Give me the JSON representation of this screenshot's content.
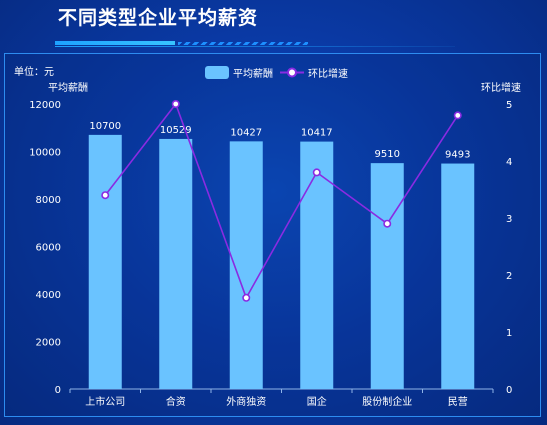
{
  "header": {
    "title": "不同类型企业平均薪资"
  },
  "chart_data": {
    "type": "bar",
    "unit_label": "单位：元",
    "ylabel_left": "平均薪酬",
    "ylabel_right": "环比增速",
    "categories": [
      "上市公司",
      "合资",
      "外商独资",
      "国企",
      "股份制企业",
      "民营"
    ],
    "series": [
      {
        "name": "平均薪酬",
        "type": "bar",
        "axis": "left",
        "values": [
          10700,
          10529,
          10427,
          10417,
          9510,
          9493
        ]
      },
      {
        "name": "环比增速",
        "type": "line",
        "axis": "right",
        "values": [
          3.4,
          5.0,
          1.6,
          3.8,
          2.9,
          4.8
        ]
      }
    ],
    "ylim_left": [
      0,
      12000
    ],
    "yticks_left": [
      0,
      2000,
      4000,
      6000,
      8000,
      10000,
      12000
    ],
    "ylim_right": [
      0,
      5
    ],
    "yticks_right": [
      0,
      1,
      2,
      3,
      4,
      5
    ],
    "legend_position": "top-center",
    "grid": false,
    "colors": {
      "bar": "#6ac3ff",
      "line": "#8a2be2",
      "axis": "#8fb4e8",
      "text": "#ffffff"
    }
  }
}
